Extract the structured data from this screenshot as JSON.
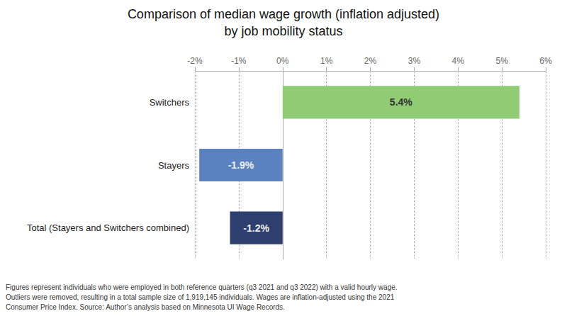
{
  "chart_data": {
    "type": "bar",
    "orientation": "horizontal",
    "title": "Comparison of median wage growth (inflation adjusted)",
    "subtitle": "by job mobility status",
    "categories": [
      "Switchers",
      "Stayers",
      "Total (Stayers and Switchers combined)"
    ],
    "values": [
      5.4,
      -1.9,
      -1.2
    ],
    "value_labels": [
      "5.4%",
      "-1.9%",
      "-1.2%"
    ],
    "data_labels": true,
    "colors": [
      "#90CC74",
      "#5B82C0",
      "#2E3F6F"
    ],
    "xlim": [
      -2.0,
      6.0
    ],
    "xticks": [
      {
        "value": -2,
        "label": "-2%"
      },
      {
        "value": -1,
        "label": "-1%"
      },
      {
        "value": 0,
        "label": "0%"
      },
      {
        "value": 1,
        "label": "1%"
      },
      {
        "value": 2,
        "label": "2%"
      },
      {
        "value": 3,
        "label": "3%"
      },
      {
        "value": 4,
        "label": "4%"
      },
      {
        "value": 5,
        "label": "5%"
      },
      {
        "value": 6,
        "label": "6%"
      }
    ],
    "grid": true,
    "annotations": [
      "Figures represent individuals who were employed in both reference quarters (q3 2021 and q3 2022) with a valid hourly wage.\nOutliers were removed, resulting in a total sample size of 1,919,145 individuals. Wages are inflation-adjusted using the 2021\nConsumer Price Index. Source: Author’s analysis based on Minnesota UI Wage Records."
    ]
  }
}
